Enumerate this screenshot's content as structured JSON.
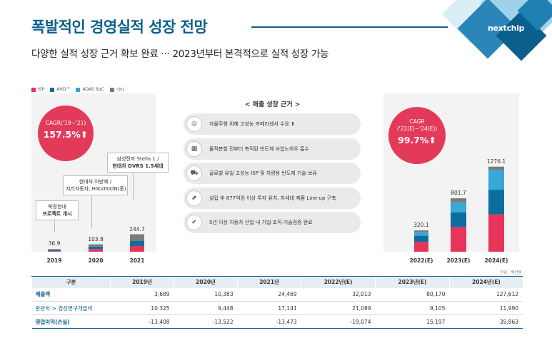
{
  "header": {
    "title": "폭발적인 경영실적 성장 전망",
    "subtitle": "다양한 실적 성장 근거 확보 완료 ··· 2023년부터 본격적으로 실적 성장 가능",
    "logo_text": "nextchip"
  },
  "colors": {
    "isp": "#e8335a",
    "ahd": "#0a6f9f",
    "adas": "#38a8d6",
    "other": "#7b7b7b",
    "accent": "#e43a5a",
    "brand": "#0b5f8c"
  },
  "legend": [
    "ISP",
    "AHD™",
    "ADAS SoC",
    "기타"
  ],
  "left_panel": {
    "cagr_label": "CAGR('19~'21)",
    "cagr_value": "157.5%⬆",
    "callouts": [
      {
        "line1": "북경현대",
        "line2": "프로젝트 개시"
      },
      {
        "line1": "현대차 아반떼 /",
        "line2": "지리자동차, HIKVISION(중)"
      },
      {
        "line1": "삼성전자 Stella 1 /",
        "line2": "현대차 DVRS 1.5세대"
      }
    ]
  },
  "right_panel": {
    "cagr_label": "CAGR",
    "cagr_sub": "('22(E)~'24(E))",
    "cagr_value": "99.7%⬆"
  },
  "center": {
    "heading": "< 매출 성장 근거 >",
    "reasons": [
      {
        "icon": "camera-sensor-icon",
        "glyph": "◎",
        "text": "자율주행 위해 고성능 카메라센서 수요 ⬆"
      },
      {
        "icon": "chip-icon",
        "glyph": "▦",
        "text": "물적분할 전부터 축적된 반도체 사업노하우 흡수"
      },
      {
        "icon": "car-icon",
        "glyph": "⛟",
        "text": "글로벌 유일 고성능 ISP 및 차량용 반도체 기술 보유"
      },
      {
        "icon": "investment-icon",
        "glyph": "⬈",
        "text": "설립 후 877억원 이상 투자 유치, 차세대 제품 Line-up 구축"
      },
      {
        "icon": "verified-icon",
        "glyph": "✔",
        "text": "5년 이상 자동차 산업 내 기업·조직·기술검증 완료"
      }
    ]
  },
  "chart_data": {
    "type": "bar",
    "stacked": true,
    "categories": [
      "2019",
      "2020",
      "2021",
      "2022(E)",
      "2023(E)",
      "2024(E)"
    ],
    "totals": [
      36.9,
      103.8,
      244.7,
      320.1,
      801.7,
      1276.1
    ],
    "series": [
      {
        "name": "ISP",
        "values": [
          8,
          38,
          80,
          148,
          370,
          560
        ]
      },
      {
        "name": "AHD™",
        "values": [
          14,
          34,
          70,
          92,
          222,
          370
        ]
      },
      {
        "name": "ADAS SoC",
        "values": [
          0,
          0,
          0,
          55,
          150,
          300
        ]
      },
      {
        "name": "기타",
        "values": [
          14.9,
          31.8,
          94.7,
          25.1,
          59.7,
          46.1
        ]
      }
    ],
    "unit": "단위 : 백만원"
  },
  "table": {
    "headers": [
      "구분",
      "2019년",
      "2020년",
      "2021년",
      "2022년(E)",
      "2023년(E)",
      "2024년(E)"
    ],
    "rows": [
      {
        "label": "매출액",
        "values": [
          "3,689",
          "10,383",
          "24,469",
          "32,013",
          "80,170",
          "127,612"
        ]
      },
      {
        "label": "판관비 > 경상연구개발비",
        "values": [
          "10.325",
          "9,448",
          "17,141",
          "21,089",
          "9,105",
          "11,990"
        ]
      },
      {
        "label": "영업이익(손실)",
        "values": [
          "-13,408",
          "-13,522",
          "-13,473",
          "-19,074",
          "15,197",
          "35,863"
        ]
      }
    ]
  }
}
